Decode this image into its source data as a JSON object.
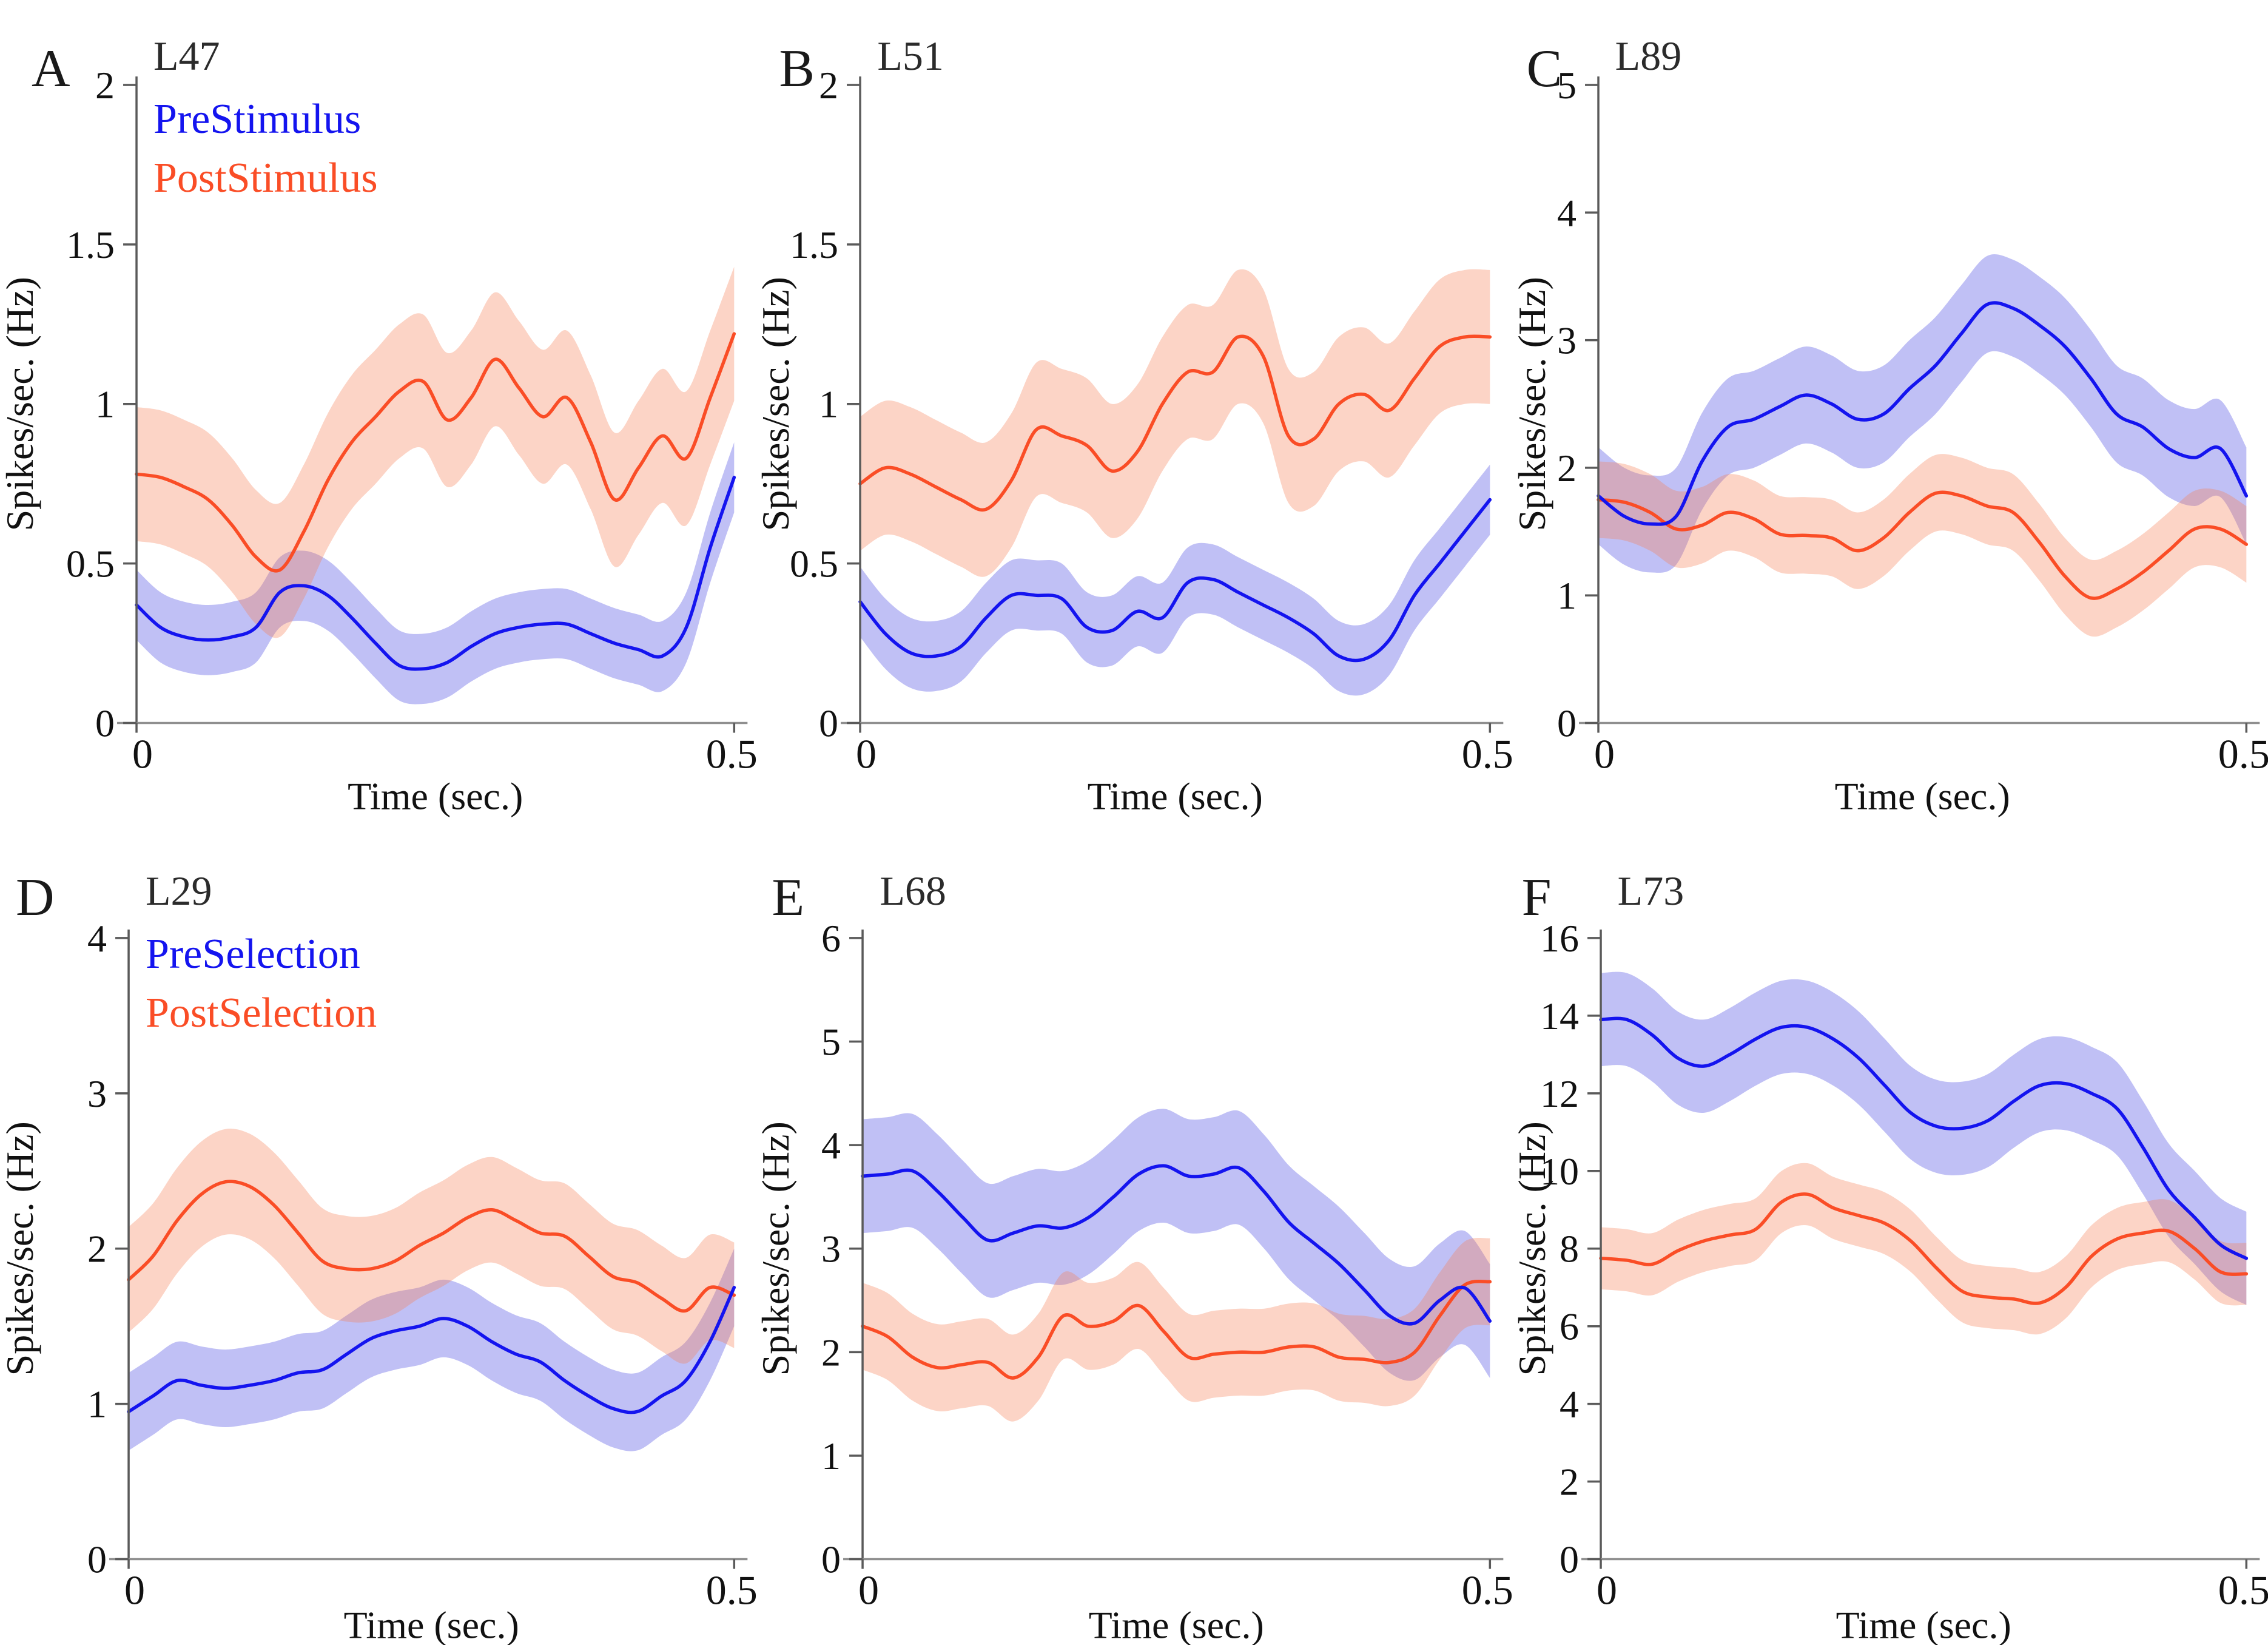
{
  "figure": {
    "description": "Six-panel spike-rate figure",
    "accent_blue": "#1414ef",
    "accent_orange": "#fa4d26"
  },
  "chart_data": [
    {
      "type": "line",
      "panel_label": "A",
      "title": "L47",
      "xlabel": "Time (sec.)",
      "ylabel": "Spikes/sec. (Hz)",
      "xlim": [
        0,
        0.5
      ],
      "ylim": [
        0,
        2
      ],
      "xticks": [
        {
          "v": 0,
          "label": "0"
        },
        {
          "v": 0.5,
          "label": "0.5"
        }
      ],
      "yticks": [
        {
          "v": 0,
          "label": "0"
        },
        {
          "v": 0.5,
          "label": "0.5"
        },
        {
          "v": 1,
          "label": "1"
        },
        {
          "v": 1.5,
          "label": "1.5"
        },
        {
          "v": 2,
          "label": "2"
        }
      ],
      "legend": [
        {
          "label": "PreStimulus"
        },
        {
          "label": "PostStimulus"
        }
      ],
      "legend_position": "top-left-inside",
      "grid": false,
      "x": [
        0,
        0.02,
        0.04,
        0.06,
        0.08,
        0.1,
        0.12,
        0.14,
        0.16,
        0.18,
        0.2,
        0.22,
        0.24,
        0.26,
        0.28,
        0.3,
        0.32,
        0.34,
        0.36,
        0.38,
        0.4,
        0.42,
        0.44,
        0.46,
        0.48,
        0.5
      ],
      "series": [
        {
          "name": "PreStimulus",
          "color": "#1414ef",
          "band_color": "rgba(105,105,230,0.42)",
          "band": 0.11,
          "y": [
            0.37,
            0.3,
            0.27,
            0.26,
            0.27,
            0.3,
            0.41,
            0.43,
            0.4,
            0.33,
            0.25,
            0.18,
            0.17,
            0.19,
            0.24,
            0.28,
            0.3,
            0.31,
            0.31,
            0.28,
            0.25,
            0.23,
            0.21,
            0.3,
            0.55,
            0.77
          ]
        },
        {
          "name": "PostStimulus",
          "color": "#fa4d26",
          "band_color": "rgba(247,130,88,0.34)",
          "band": 0.21,
          "y": [
            0.78,
            0.77,
            0.74,
            0.7,
            0.62,
            0.52,
            0.48,
            0.6,
            0.76,
            0.88,
            0.96,
            1.04,
            1.07,
            0.95,
            1.02,
            1.14,
            1.05,
            0.96,
            1.02,
            0.88,
            0.7,
            0.8,
            0.9,
            0.83,
            1.02,
            1.22
          ]
        }
      ]
    },
    {
      "type": "line",
      "panel_label": "B",
      "title": "L51",
      "xlabel": "Time (sec.)",
      "ylabel": "Spikes/sec. (Hz)",
      "xlim": [
        0,
        0.5
      ],
      "ylim": [
        0,
        2
      ],
      "xticks": [
        {
          "v": 0,
          "label": "0"
        },
        {
          "v": 0.5,
          "label": "0.5"
        }
      ],
      "yticks": [
        {
          "v": 0,
          "label": "0"
        },
        {
          "v": 0.5,
          "label": "0.5"
        },
        {
          "v": 1,
          "label": "1"
        },
        {
          "v": 1.5,
          "label": "1.5"
        },
        {
          "v": 2,
          "label": "2"
        }
      ],
      "grid": false,
      "x": [
        0,
        0.02,
        0.04,
        0.06,
        0.08,
        0.1,
        0.12,
        0.14,
        0.16,
        0.18,
        0.2,
        0.22,
        0.24,
        0.26,
        0.28,
        0.3,
        0.32,
        0.34,
        0.36,
        0.38,
        0.4,
        0.42,
        0.44,
        0.46,
        0.48,
        0.5
      ],
      "series": [
        {
          "name": "PreStimulus",
          "color": "#1414ef",
          "band_color": "rgba(105,105,230,0.42)",
          "band": 0.11,
          "y": [
            0.38,
            0.28,
            0.22,
            0.21,
            0.24,
            0.33,
            0.4,
            0.4,
            0.39,
            0.3,
            0.29,
            0.35,
            0.33,
            0.44,
            0.45,
            0.41,
            0.37,
            0.33,
            0.28,
            0.21,
            0.2,
            0.26,
            0.4,
            0.5,
            0.6,
            0.7
          ]
        },
        {
          "name": "PostStimulus",
          "color": "#fa4d26",
          "band_color": "rgba(247,130,88,0.34)",
          "band": 0.21,
          "y": [
            0.75,
            0.8,
            0.78,
            0.74,
            0.7,
            0.67,
            0.76,
            0.92,
            0.9,
            0.87,
            0.79,
            0.85,
            1.0,
            1.1,
            1.1,
            1.21,
            1.15,
            0.9,
            0.89,
            1.0,
            1.03,
            0.98,
            1.08,
            1.18,
            1.21,
            1.21
          ]
        }
      ]
    },
    {
      "type": "line",
      "panel_label": "C",
      "title": "L89",
      "xlabel": "Time (sec.)",
      "ylabel": "Spikes/sec. (Hz)",
      "xlim": [
        0,
        0.5
      ],
      "ylim": [
        0,
        5
      ],
      "xticks": [
        {
          "v": 0,
          "label": "0"
        },
        {
          "v": 0.5,
          "label": "0.5"
        }
      ],
      "yticks": [
        {
          "v": 0,
          "label": "0"
        },
        {
          "v": 1,
          "label": "1"
        },
        {
          "v": 2,
          "label": "2"
        },
        {
          "v": 3,
          "label": "3"
        },
        {
          "v": 4,
          "label": "4"
        },
        {
          "v": 5,
          "label": "5"
        }
      ],
      "grid": false,
      "x": [
        0,
        0.02,
        0.04,
        0.06,
        0.08,
        0.1,
        0.12,
        0.14,
        0.16,
        0.18,
        0.2,
        0.22,
        0.24,
        0.26,
        0.28,
        0.3,
        0.32,
        0.34,
        0.36,
        0.38,
        0.4,
        0.42,
        0.44,
        0.46,
        0.48,
        0.5
      ],
      "series": [
        {
          "name": "PreStimulus",
          "color": "#1414ef",
          "band_color": "rgba(105,105,230,0.42)",
          "band": 0.38,
          "y": [
            1.78,
            1.62,
            1.56,
            1.62,
            2.05,
            2.32,
            2.38,
            2.48,
            2.57,
            2.5,
            2.38,
            2.42,
            2.62,
            2.8,
            3.05,
            3.28,
            3.25,
            3.12,
            2.95,
            2.7,
            2.42,
            2.32,
            2.15,
            2.08,
            2.15,
            1.78
          ]
        },
        {
          "name": "PostStimulus",
          "color": "#fa4d26",
          "band_color": "rgba(247,130,88,0.34)",
          "band": 0.3,
          "y": [
            1.75,
            1.73,
            1.65,
            1.52,
            1.55,
            1.65,
            1.6,
            1.48,
            1.47,
            1.45,
            1.35,
            1.45,
            1.65,
            1.8,
            1.78,
            1.7,
            1.65,
            1.42,
            1.15,
            0.98,
            1.05,
            1.18,
            1.35,
            1.52,
            1.52,
            1.4
          ]
        }
      ]
    },
    {
      "type": "line",
      "panel_label": "D",
      "title": "L29",
      "xlabel": "Time (sec.)",
      "ylabel": "Spikes/sec. (Hz)",
      "xlim": [
        0,
        0.5
      ],
      "ylim": [
        0,
        4
      ],
      "xticks": [
        {
          "v": 0,
          "label": "0"
        },
        {
          "v": 0.5,
          "label": "0.5"
        }
      ],
      "yticks": [
        {
          "v": 0,
          "label": "0"
        },
        {
          "v": 1,
          "label": "1"
        },
        {
          "v": 2,
          "label": "2"
        },
        {
          "v": 3,
          "label": "3"
        },
        {
          "v": 4,
          "label": "4"
        }
      ],
      "legend": [
        {
          "label": "PreSelection"
        },
        {
          "label": "PostSelection"
        }
      ],
      "legend_position": "top-left-inside",
      "grid": false,
      "x": [
        0,
        0.02,
        0.04,
        0.06,
        0.08,
        0.1,
        0.12,
        0.14,
        0.16,
        0.18,
        0.2,
        0.22,
        0.24,
        0.26,
        0.28,
        0.3,
        0.32,
        0.34,
        0.36,
        0.38,
        0.4,
        0.42,
        0.44,
        0.46,
        0.48,
        0.5
      ],
      "series": [
        {
          "name": "PreSelection",
          "color": "#1414ef",
          "band_color": "rgba(105,105,230,0.42)",
          "band": 0.25,
          "y": [
            0.95,
            1.05,
            1.15,
            1.12,
            1.1,
            1.12,
            1.15,
            1.2,
            1.22,
            1.32,
            1.42,
            1.47,
            1.5,
            1.55,
            1.5,
            1.4,
            1.32,
            1.27,
            1.15,
            1.05,
            0.97,
            0.95,
            1.05,
            1.15,
            1.4,
            1.75
          ]
        },
        {
          "name": "PostSelection",
          "color": "#fa4d26",
          "band_color": "rgba(247,130,88,0.34)",
          "band": 0.34,
          "y": [
            1.8,
            1.95,
            2.18,
            2.35,
            2.43,
            2.4,
            2.28,
            2.1,
            1.92,
            1.87,
            1.87,
            1.92,
            2.02,
            2.1,
            2.2,
            2.25,
            2.18,
            2.1,
            2.08,
            1.95,
            1.82,
            1.78,
            1.68,
            1.6,
            1.75,
            1.7
          ]
        }
      ]
    },
    {
      "type": "line",
      "panel_label": "E",
      "title": "L68",
      "xlabel": "Time (sec.)",
      "ylabel": "Spikes/sec. (Hz)",
      "xlim": [
        0,
        0.5
      ],
      "ylim": [
        0,
        6
      ],
      "xticks": [
        {
          "v": 0,
          "label": "0"
        },
        {
          "v": 0.5,
          "label": "0.5"
        }
      ],
      "yticks": [
        {
          "v": 0,
          "label": "0"
        },
        {
          "v": 1,
          "label": "1"
        },
        {
          "v": 2,
          "label": "2"
        },
        {
          "v": 3,
          "label": "3"
        },
        {
          "v": 4,
          "label": "4"
        },
        {
          "v": 5,
          "label": "5"
        },
        {
          "v": 6,
          "label": "6"
        }
      ],
      "grid": false,
      "x": [
        0,
        0.02,
        0.04,
        0.06,
        0.08,
        0.1,
        0.12,
        0.14,
        0.16,
        0.18,
        0.2,
        0.22,
        0.24,
        0.26,
        0.28,
        0.3,
        0.32,
        0.34,
        0.36,
        0.38,
        0.4,
        0.42,
        0.44,
        0.46,
        0.48,
        0.5
      ],
      "series": [
        {
          "name": "PreSelection",
          "color": "#1414ef",
          "band_color": "rgba(105,105,230,0.42)",
          "band": 0.55,
          "y": [
            3.7,
            3.72,
            3.75,
            3.55,
            3.3,
            3.08,
            3.15,
            3.22,
            3.2,
            3.3,
            3.5,
            3.72,
            3.8,
            3.7,
            3.72,
            3.78,
            3.55,
            3.25,
            3.05,
            2.85,
            2.6,
            2.35,
            2.28,
            2.5,
            2.62,
            2.3
          ]
        },
        {
          "name": "PostSelection",
          "color": "#fa4d26",
          "band_color": "rgba(247,130,88,0.34)",
          "band": 0.42,
          "y": [
            2.25,
            2.15,
            1.95,
            1.85,
            1.88,
            1.9,
            1.75,
            1.95,
            2.35,
            2.25,
            2.3,
            2.45,
            2.2,
            1.95,
            1.98,
            2.0,
            2.0,
            2.05,
            2.05,
            1.95,
            1.93,
            1.9,
            2.0,
            2.35,
            2.65,
            2.68
          ]
        }
      ]
    },
    {
      "type": "line",
      "panel_label": "F",
      "title": "L73",
      "xlabel": "Time (sec.)",
      "ylabel": "Spikes/sec. (Hz)",
      "xlim": [
        0,
        0.5
      ],
      "ylim": [
        0,
        16
      ],
      "xticks": [
        {
          "v": 0,
          "label": "0"
        },
        {
          "v": 0.5,
          "label": "0.5"
        }
      ],
      "yticks": [
        {
          "v": 0,
          "label": "0"
        },
        {
          "v": 2,
          "label": "2"
        },
        {
          "v": 4,
          "label": "4"
        },
        {
          "v": 6,
          "label": "6"
        },
        {
          "v": 8,
          "label": "8"
        },
        {
          "v": 10,
          "label": "10"
        },
        {
          "v": 12,
          "label": "12"
        },
        {
          "v": 14,
          "label": "14"
        },
        {
          "v": 16,
          "label": "16"
        }
      ],
      "grid": false,
      "x": [
        0,
        0.02,
        0.04,
        0.06,
        0.08,
        0.1,
        0.12,
        0.14,
        0.16,
        0.18,
        0.2,
        0.22,
        0.24,
        0.26,
        0.28,
        0.3,
        0.32,
        0.34,
        0.36,
        0.38,
        0.4,
        0.42,
        0.44,
        0.46,
        0.48,
        0.5
      ],
      "series": [
        {
          "name": "PreSelection",
          "color": "#1414ef",
          "band_color": "rgba(105,105,230,0.42)",
          "band": 1.2,
          "y": [
            13.9,
            13.9,
            13.5,
            12.9,
            12.7,
            13.0,
            13.4,
            13.7,
            13.7,
            13.4,
            12.9,
            12.2,
            11.5,
            11.15,
            11.1,
            11.3,
            11.8,
            12.2,
            12.25,
            12.0,
            11.6,
            10.6,
            9.5,
            8.8,
            8.1,
            7.75
          ]
        },
        {
          "name": "PostSelection",
          "color": "#fa4d26",
          "band_color": "rgba(247,130,88,0.34)",
          "band": 0.8,
          "y": [
            7.75,
            7.7,
            7.6,
            7.95,
            8.2,
            8.35,
            8.5,
            9.2,
            9.4,
            9.05,
            8.85,
            8.65,
            8.2,
            7.5,
            6.9,
            6.75,
            6.7,
            6.6,
            7.0,
            7.8,
            8.25,
            8.4,
            8.45,
            8.0,
            7.4,
            7.35
          ]
        }
      ]
    }
  ]
}
